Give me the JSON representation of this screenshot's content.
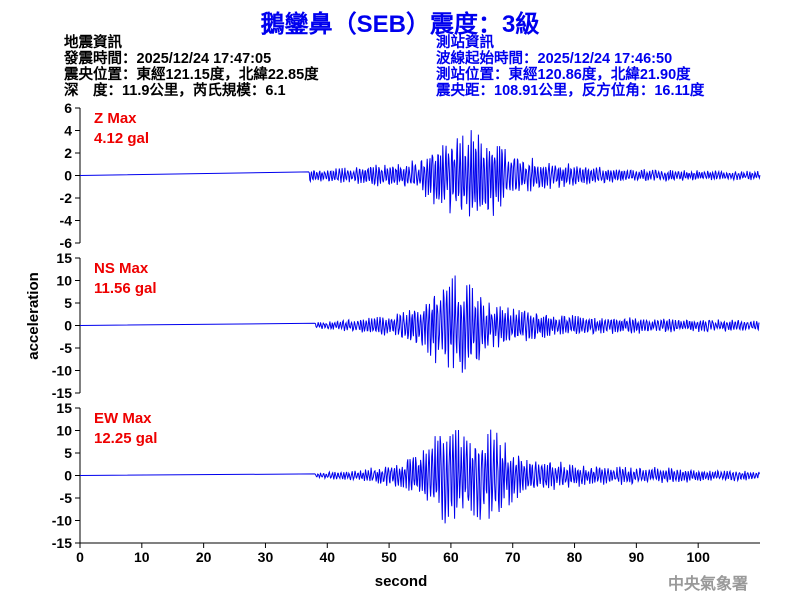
{
  "title": "鵝鑾鼻（SEB）震度：3級",
  "quake_info": {
    "heading": "地震資訊",
    "time": "發震時間：2025/12/24 17:47:05",
    "location": "震央位置：東經121.15度，北緯22.85度",
    "depth_mag": "深　度：11.9公里，芮氏規模：6.1"
  },
  "station_info": {
    "heading": "測站資訊",
    "start_time": "波線起始時間：2025/12/24 17:46:50",
    "location": "測站位置：東經120.86度，北緯21.90度",
    "distance": "震央距：108.91公里，反方位角：16.11度"
  },
  "watermark": "中央氣象署",
  "chart_data": {
    "type": "line",
    "xlabel": "second",
    "ylabel": "acceleration",
    "xlim": [
      0,
      110
    ],
    "xticks": [
      0,
      10,
      20,
      30,
      40,
      50,
      60,
      70,
      80,
      90,
      100
    ],
    "line_color": "#0000ee",
    "label_color": "#ee0000",
    "panels": [
      {
        "component": "Z",
        "label": "Z Max",
        "max_label": "4.12 gal",
        "max": 4.12,
        "ylim": [
          -6,
          6
        ],
        "yticks": [
          6,
          4,
          2,
          0,
          -2,
          -4,
          -6
        ],
        "onset": 37,
        "envelope_t": [
          37,
          45,
          55,
          58,
          62,
          67,
          70,
          80,
          90,
          110
        ],
        "envelope_a": [
          0.6,
          0.8,
          1.5,
          3.5,
          4.12,
          4.0,
          2.0,
          1.0,
          0.6,
          0.4
        ]
      },
      {
        "component": "NS",
        "label": "NS Max",
        "max_label": "11.56 gal",
        "max": 11.56,
        "ylim": [
          -15,
          15
        ],
        "yticks": [
          15,
          10,
          5,
          0,
          -5,
          -10,
          -15
        ],
        "onset": 38,
        "envelope_t": [
          38,
          45,
          52,
          57,
          61,
          64,
          68,
          75,
          85,
          110
        ],
        "envelope_a": [
          0.8,
          1.5,
          3,
          8,
          11.56,
          9,
          5,
          3,
          2,
          1.2
        ]
      },
      {
        "component": "EW",
        "label": "EW Max",
        "max_label": "12.25 gal",
        "max": 12.25,
        "ylim": [
          -15,
          15
        ],
        "yticks": [
          15,
          10,
          5,
          0,
          -5,
          -10,
          -15
        ],
        "onset": 38,
        "envelope_t": [
          38,
          45,
          52,
          57,
          59,
          63,
          67,
          72,
          82,
          110
        ],
        "envelope_a": [
          0.6,
          1.2,
          3,
          8,
          12.25,
          10,
          11,
          4,
          2.5,
          1
        ]
      }
    ]
  }
}
